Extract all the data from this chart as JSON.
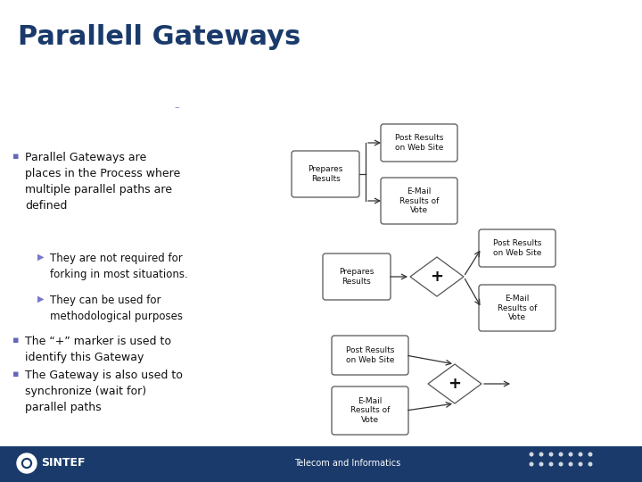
{
  "title": "Parallell Gateways",
  "title_color": "#1a3a6b",
  "slide_bg": "#ffffff",
  "footer_bg": "#1a3a6b",
  "footer_text": "Telecom and Informatics",
  "footer_logo": "SINTEF",
  "bullet_color": "#6666bb",
  "sub_bullet_color": "#7777cc",
  "text_color": "#111111",
  "box_edge": "#555555",
  "arrow_color": "#333333"
}
